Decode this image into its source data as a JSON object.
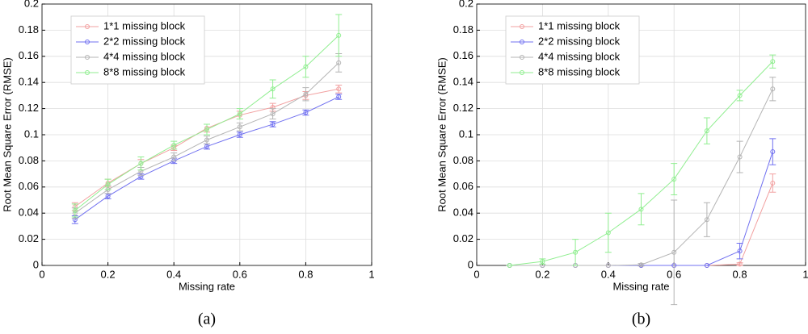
{
  "chart_data": [
    {
      "type": "line",
      "caption": "(a)",
      "xlabel": "Missing rate",
      "ylabel": "Root Mean Square Error (RMSE)",
      "x": [
        0.1,
        0.2,
        0.3,
        0.4,
        0.5,
        0.6,
        0.7,
        0.8,
        0.9
      ],
      "xlim": [
        0,
        1
      ],
      "xticks": [
        0,
        0.2,
        0.4,
        0.6,
        0.8,
        1
      ],
      "ylim": [
        0,
        0.2
      ],
      "yticks": [
        0,
        0.02,
        0.04,
        0.06,
        0.08,
        0.1,
        0.12,
        0.14,
        0.16,
        0.18,
        0.2
      ],
      "grid": true,
      "legend": "upper left",
      "series": [
        {
          "name": "1*1 missing block",
          "color": "#f2a0a0",
          "values": [
            0.045,
            0.063,
            0.078,
            0.09,
            0.105,
            0.115,
            0.121,
            0.13,
            0.135
          ],
          "errors": [
            0.003,
            0.003,
            0.003,
            0.002,
            0.003,
            0.003,
            0.003,
            0.003,
            0.003
          ]
        },
        {
          "name": "2*2 missing block",
          "color": "#7070f0",
          "values": [
            0.035,
            0.053,
            0.068,
            0.08,
            0.091,
            0.1,
            0.108,
            0.117,
            0.129
          ],
          "errors": [
            0.003,
            0.002,
            0.002,
            0.002,
            0.002,
            0.002,
            0.002,
            0.002,
            0.002
          ]
        },
        {
          "name": "4*4 missing block",
          "color": "#b4b4b4",
          "values": [
            0.04,
            0.058,
            0.072,
            0.083,
            0.096,
            0.106,
            0.116,
            0.131,
            0.155
          ],
          "errors": [
            0.004,
            0.003,
            0.003,
            0.003,
            0.003,
            0.003,
            0.004,
            0.005,
            0.007
          ]
        },
        {
          "name": "8*8 missing block",
          "color": "#90ee90",
          "values": [
            0.042,
            0.062,
            0.078,
            0.092,
            0.104,
            0.116,
            0.135,
            0.152,
            0.176
          ],
          "errors": [
            0.005,
            0.004,
            0.005,
            0.003,
            0.004,
            0.004,
            0.007,
            0.008,
            0.016
          ]
        }
      ]
    },
    {
      "type": "line",
      "caption": "(b)",
      "xlabel": "Missing rate",
      "ylabel": "Root Mean Square Error (RMSE)",
      "x": [
        0.1,
        0.2,
        0.3,
        0.4,
        0.5,
        0.6,
        0.7,
        0.8,
        0.9
      ],
      "xlim": [
        0,
        1
      ],
      "xticks": [
        0,
        0.2,
        0.4,
        0.6,
        0.8,
        1
      ],
      "ylim": [
        0,
        0.2
      ],
      "yticks": [
        0,
        0.02,
        0.04,
        0.06,
        0.08,
        0.1,
        0.12,
        0.14,
        0.16,
        0.18,
        0.2
      ],
      "grid": true,
      "legend": "upper left",
      "series": [
        {
          "name": "1*1 missing block",
          "color": "#f2a0a0",
          "values": [
            0,
            0,
            0,
            0,
            0,
            0,
            0,
            0.001,
            0.063
          ],
          "errors": [
            0,
            0,
            0,
            0,
            0,
            0,
            0,
            0.001,
            0.007
          ]
        },
        {
          "name": "2*2 missing block",
          "color": "#7070f0",
          "values": [
            0,
            0,
            0,
            0,
            0,
            0,
            0,
            0.011,
            0.087
          ],
          "errors": [
            0,
            0,
            0,
            0,
            0,
            0,
            0,
            0.006,
            0.01
          ]
        },
        {
          "name": "4*4 missing block",
          "color": "#b4b4b4",
          "values": [
            0,
            0,
            0,
            0,
            0.0005,
            0.01,
            0.035,
            0.083,
            0.135
          ],
          "errors": [
            0,
            0,
            0,
            0,
            0.001,
            0.04,
            0.013,
            0.012,
            0.009
          ]
        },
        {
          "name": "8*8 missing block",
          "color": "#90ee90",
          "values": [
            0,
            0.003,
            0.01,
            0.025,
            0.043,
            0.066,
            0.103,
            0.13,
            0.156
          ],
          "errors": [
            0,
            0.002,
            0.01,
            0.015,
            0.012,
            0.012,
            0.01,
            0.004,
            0.005
          ]
        }
      ]
    }
  ]
}
